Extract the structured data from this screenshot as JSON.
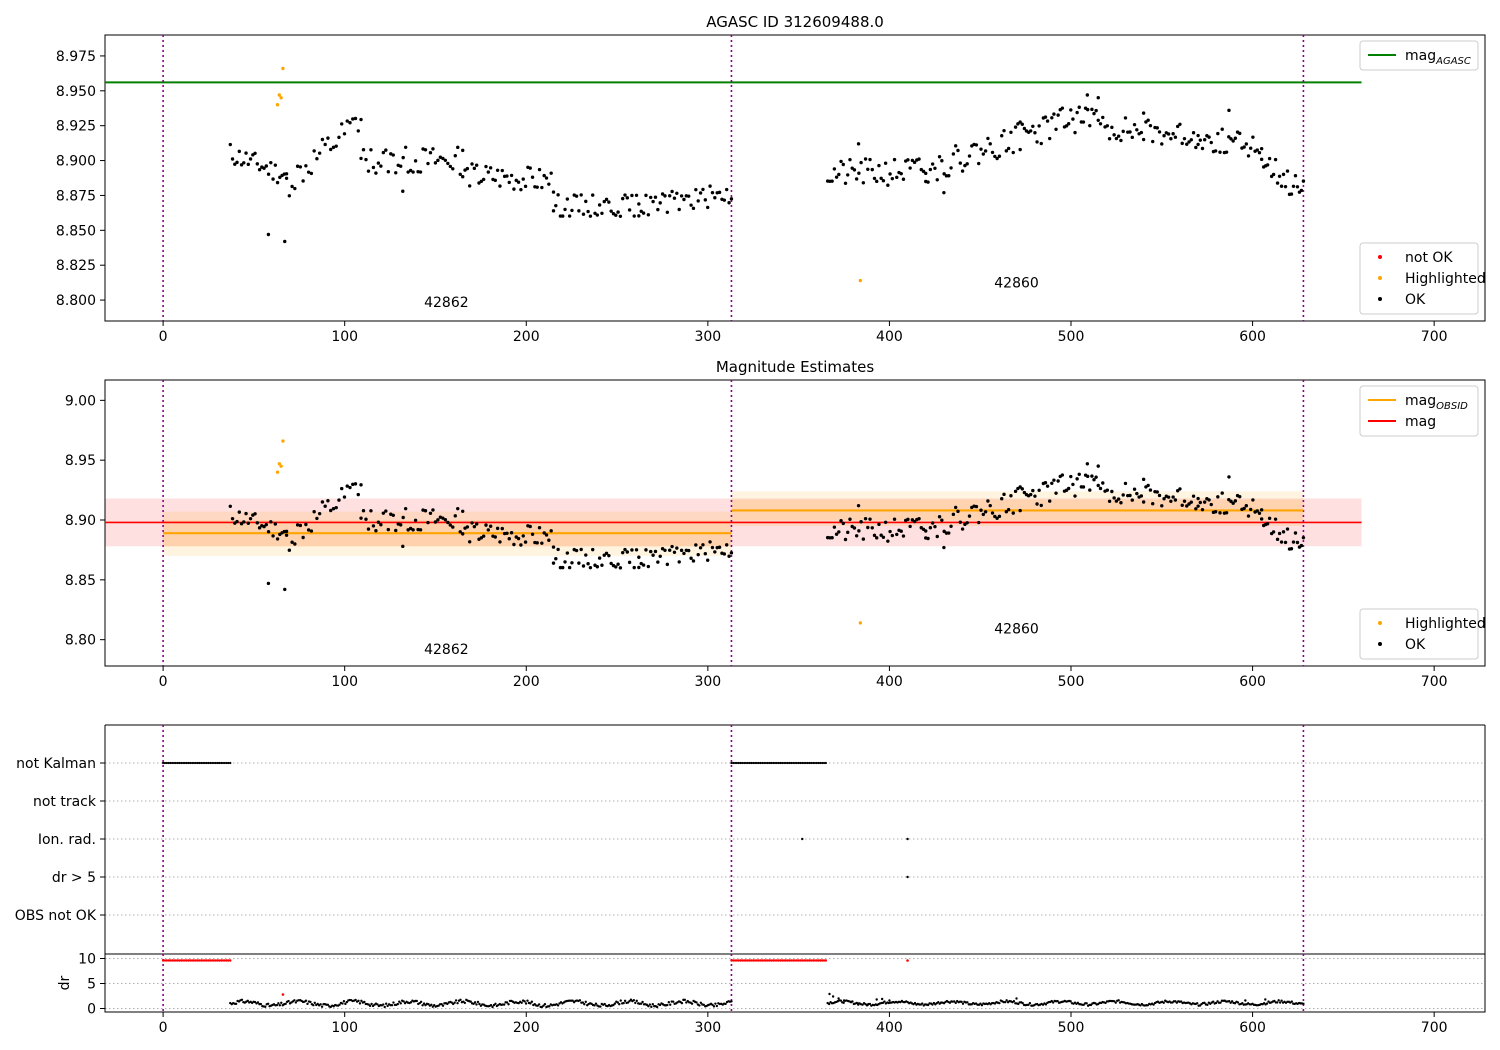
{
  "chart_data": [
    {
      "type": "scatter",
      "title": "AGASC ID 312609488.0",
      "xlim": [
        -32,
        728
      ],
      "ylim": [
        8.785,
        8.99
      ],
      "xticks": [
        0,
        100,
        200,
        300,
        400,
        500,
        600,
        700
      ],
      "yticks": [
        8.8,
        8.825,
        8.85,
        8.875,
        8.9,
        8.925,
        8.95,
        8.975
      ],
      "ytick_labels": [
        "8.800",
        "8.825",
        "8.850",
        "8.875",
        "8.900",
        "8.925",
        "8.950",
        "8.975"
      ],
      "obs_boundaries": [
        0,
        313,
        628
      ],
      "obs_labels": [
        {
          "text": "42862",
          "x": 156,
          "y": 8.795
        },
        {
          "text": "42860",
          "x": 470,
          "y": 8.809
        }
      ],
      "hlines": [
        {
          "name": "mag_AGASC",
          "y": 8.956,
          "x0": -32,
          "x1": 660,
          "color": "#008000"
        }
      ],
      "series": [
        {
          "name": "not OK",
          "color": "#ff0000",
          "points": []
        },
        {
          "name": "Highlighted",
          "color": "#ffa500",
          "points": [
            [
              63,
              8.94
            ],
            [
              64,
              8.947
            ],
            [
              65,
              8.945
            ],
            [
              66,
              8.966
            ],
            [
              384,
              8.814
            ]
          ]
        },
        {
          "name": "OK",
          "color": "#000000",
          "segments": [
            {
              "x0": 37,
              "x1": 68,
              "n": 26,
              "y0": 8.905,
              "y1": 8.889,
              "amp": 0.008,
              "seed": 11
            },
            {
              "x0": 68,
              "x1": 109,
              "n": 28,
              "y0": 8.882,
              "y1": 8.928,
              "amp": 0.011,
              "seed": 12
            },
            {
              "x0": 109,
              "x1": 165,
              "n": 42,
              "y0": 8.9,
              "y1": 8.9,
              "amp": 0.01,
              "seed": 13
            },
            {
              "x0": 165,
              "x1": 215,
              "n": 40,
              "y0": 8.89,
              "y1": 8.885,
              "amp": 0.009,
              "seed": 14
            },
            {
              "x0": 215,
              "x1": 262,
              "n": 38,
              "y0": 8.868,
              "y1": 8.868,
              "amp": 0.008,
              "seed": 15
            },
            {
              "x0": 262,
              "x1": 313,
              "n": 40,
              "y0": 8.867,
              "y1": 8.876,
              "amp": 0.008,
              "seed": 16
            },
            {
              "x0": 366,
              "x1": 420,
              "n": 45,
              "y0": 8.89,
              "y1": 8.893,
              "amp": 0.01,
              "seed": 21
            },
            {
              "x0": 420,
              "x1": 472,
              "n": 42,
              "y0": 8.893,
              "y1": 8.917,
              "amp": 0.01,
              "seed": 22
            },
            {
              "x0": 472,
              "x1": 515,
              "n": 38,
              "y0": 8.918,
              "y1": 8.935,
              "amp": 0.011,
              "seed": 23
            },
            {
              "x0": 515,
              "x1": 570,
              "n": 45,
              "y0": 8.924,
              "y1": 8.918,
              "amp": 0.009,
              "seed": 24
            },
            {
              "x0": 570,
              "x1": 605,
              "n": 30,
              "y0": 8.916,
              "y1": 8.91,
              "amp": 0.009,
              "seed": 25
            },
            {
              "x0": 605,
              "x1": 628,
              "n": 22,
              "y0": 8.902,
              "y1": 8.877,
              "amp": 0.01,
              "seed": 26
            }
          ],
          "extra_points": [
            [
              58,
              8.847
            ],
            [
              67,
              8.842
            ],
            [
              132,
              8.878
            ],
            [
              383,
              8.912
            ],
            [
              430,
              8.877
            ],
            [
              509,
              8.947
            ],
            [
              540,
              8.934
            ],
            [
              587,
              8.936
            ]
          ]
        }
      ],
      "legend": {
        "location": "upper-right",
        "entries": [
          {
            "label": "mag",
            "sub": "AGASC",
            "color": "#008000",
            "kind": "line"
          }
        ]
      },
      "legend2": {
        "location": "lower-right",
        "entries": [
          {
            "label": "not OK",
            "color": "#ff0000",
            "kind": "dot"
          },
          {
            "label": "Highlighted",
            "color": "#ffa500",
            "kind": "dot"
          },
          {
            "label": "OK",
            "color": "#000000",
            "kind": "dot"
          }
        ]
      }
    },
    {
      "type": "scatter",
      "title": "Magnitude Estimates",
      "xlim": [
        -32,
        728
      ],
      "ylim": [
        8.778,
        9.017
      ],
      "xticks": [
        0,
        100,
        200,
        300,
        400,
        500,
        600,
        700
      ],
      "yticks": [
        8.8,
        8.85,
        8.9,
        8.95,
        9.0
      ],
      "ytick_labels": [
        "8.80",
        "8.85",
        "8.90",
        "8.95",
        "9.00"
      ],
      "obs_boundaries": [
        0,
        313,
        628
      ],
      "obs_labels": [
        {
          "text": "42862",
          "x": 156,
          "y": 8.788
        },
        {
          "text": "42860",
          "x": 470,
          "y": 8.805
        }
      ],
      "bands": [
        {
          "x0": -32,
          "x1": 660,
          "y0": 8.878,
          "y1": 8.918,
          "color": "#ff0000",
          "opacity": 0.12
        },
        {
          "x0": 0,
          "x1": 313,
          "y0": 8.87,
          "y1": 8.907,
          "color": "#ffa500",
          "opacity": 0.12
        },
        {
          "x0": 0,
          "x1": 313,
          "y0": 8.878,
          "y1": 8.9,
          "color": "#ffa500",
          "opacity": 0.12
        },
        {
          "x0": 313,
          "x1": 628,
          "y0": 8.895,
          "y1": 8.924,
          "color": "#ffa500",
          "opacity": 0.12
        },
        {
          "x0": 313,
          "x1": 628,
          "y0": 8.9,
          "y1": 8.917,
          "color": "#ffa500",
          "opacity": 0.1
        }
      ],
      "hlines": [
        {
          "name": "mag_OBSID",
          "y": 8.889,
          "x0": 0,
          "x1": 313,
          "color": "#ffa500",
          "width": 2.2
        },
        {
          "name": "mag_OBSID",
          "y": 8.908,
          "x0": 313,
          "x1": 628,
          "color": "#ffa500",
          "width": 2.2
        },
        {
          "name": "mag",
          "y": 8.898,
          "x0": -32,
          "x1": 660,
          "color": "#ff0000",
          "width": 1.6
        }
      ],
      "series": [
        {
          "name": "Highlighted",
          "color": "#ffa500",
          "points": [
            [
              63,
              8.94
            ],
            [
              64,
              8.947
            ],
            [
              65,
              8.945
            ],
            [
              66,
              8.966
            ],
            [
              384,
              8.814
            ]
          ]
        },
        {
          "name": "OK",
          "color": "#000000",
          "same_as_panel": 0
        }
      ],
      "legend": {
        "location": "upper-right",
        "entries": [
          {
            "label": "mag",
            "sub": "OBSID",
            "color": "#ffa500",
            "kind": "line"
          },
          {
            "label": "mag",
            "sub": "",
            "color": "#ff0000",
            "kind": "line"
          }
        ]
      },
      "legend2": {
        "location": "lower-right",
        "entries": [
          {
            "label": "Highlighted",
            "color": "#ffa500",
            "kind": "dot"
          },
          {
            "label": "OK",
            "color": "#000000",
            "kind": "dot"
          }
        ]
      }
    },
    {
      "type": "scatter",
      "title": "",
      "xlim": [
        -32,
        728
      ],
      "flag_rows": [
        "not Kalman",
        "not track",
        "Ion. rad.",
        "dr > 5",
        "OBS not OK"
      ],
      "obs_boundaries": [
        0,
        313,
        628
      ],
      "flags": {
        "not Kalman": {
          "ranges": [
            [
              0,
              37
            ],
            [
              313,
              365
            ]
          ],
          "points": []
        },
        "not track": {
          "ranges": [],
          "points": []
        },
        "Ion. rad.": {
          "ranges": [],
          "points": [
            352,
            410
          ]
        },
        "dr > 5": {
          "ranges": [],
          "points": [
            410
          ]
        },
        "OBS not OK": {
          "ranges": [],
          "points": []
        }
      }
    },
    {
      "type": "scatter",
      "title": "",
      "xlim": [
        -32,
        728
      ],
      "ylim": [
        -0.7,
        10.9
      ],
      "ylabel": "dr",
      "xticks": [
        0,
        100,
        200,
        300,
        400,
        500,
        600,
        700
      ],
      "yticks": [
        0,
        5,
        10
      ],
      "ytick_labels": [
        "0",
        "5",
        "10"
      ],
      "obs_boundaries": [
        0,
        313,
        628
      ],
      "series": [
        {
          "name": "dr > 5",
          "color": "#ff0000",
          "ranges_at_y": [
            {
              "x0": 0,
              "x1": 37,
              "y": 9.6
            },
            {
              "x0": 313,
              "x1": 365,
              "y": 9.6
            }
          ],
          "points": [
            [
              66,
              2.8
            ],
            [
              410,
              9.6
            ]
          ]
        },
        {
          "name": "dr",
          "color": "#000000",
          "segments": [
            {
              "x0": 37,
              "x1": 313,
              "base": 1.0,
              "amp": 0.7,
              "seed": 31
            },
            {
              "x0": 366,
              "x1": 628,
              "base": 1.1,
              "amp": 0.5,
              "seed": 32
            }
          ],
          "extra_points": [
            [
              367,
              2.9
            ],
            [
              369,
              2.4
            ],
            [
              372,
              2.0
            ],
            [
              375,
              1.6
            ],
            [
              379,
              1.3
            ],
            [
              383,
              1.0
            ],
            [
              388,
              0.7
            ],
            [
              393,
              1.8
            ],
            [
              396,
              1.9
            ],
            [
              400,
              1.6
            ],
            [
              470,
              2.0
            ],
            [
              596,
              1.6
            ],
            [
              607,
              1.8
            ]
          ]
        }
      ]
    }
  ]
}
